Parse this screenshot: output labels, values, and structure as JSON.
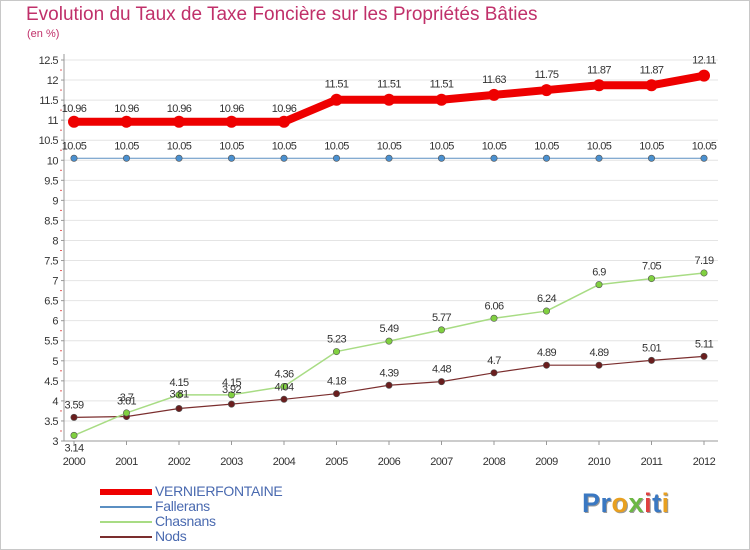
{
  "title": "Evolution du Taux de Taxe Foncière sur les Propriétés Bâties",
  "subtitle": "(en %)",
  "chart_data": {
    "type": "line",
    "title": "Evolution du Taux de Taxe Foncière sur les Propriétés Bâties",
    "ylabel": "(en %)",
    "xlabel": "",
    "x": [
      "2000",
      "2001",
      "2002",
      "2003",
      "2004",
      "2005",
      "2006",
      "2007",
      "2008",
      "2009",
      "2010",
      "2011",
      "2012"
    ],
    "ylim": [
      3,
      12.5
    ],
    "yticks": [
      "3",
      "3.5",
      "4",
      "4.5",
      "5",
      "5.5",
      "6",
      "6.5",
      "7",
      "7.5",
      "8",
      "8.5",
      "9",
      "9.5",
      "10",
      "10.5",
      "11",
      "11.5",
      "12",
      "12.5"
    ],
    "grid": true,
    "legend_position": "bottom-left",
    "series": [
      {
        "name": "VERNIERFONTAINE",
        "color": "#ee0000",
        "values": [
          10.96,
          10.96,
          10.96,
          10.96,
          10.96,
          11.51,
          11.51,
          11.51,
          11.63,
          11.75,
          11.87,
          11.87,
          12.11
        ],
        "labels": [
          "10.96",
          "10.96",
          "10.96",
          "10.96",
          "10.96",
          "11.51",
          "11.51",
          "11.51",
          "11.63",
          "11.75",
          "11.87",
          "11.87",
          "12.11"
        ]
      },
      {
        "name": "Fallerans",
        "color": "#5b8fc2",
        "values": [
          10.05,
          10.05,
          10.05,
          10.05,
          10.05,
          10.05,
          10.05,
          10.05,
          10.05,
          10.05,
          10.05,
          10.05,
          10.05
        ],
        "labels": [
          "10.05",
          "10.05",
          "10.05",
          "10.05",
          "10.05",
          "10.05",
          "10.05",
          "10.05",
          "10.05",
          "10.05",
          "10.05",
          "10.05",
          "10.05"
        ]
      },
      {
        "name": "Chasnans",
        "color": "#a8dc84",
        "values": [
          3.14,
          3.7,
          4.15,
          4.15,
          4.36,
          5.23,
          5.49,
          5.77,
          6.06,
          6.24,
          6.9,
          7.05,
          7.19
        ],
        "labels": [
          "3.14",
          "3.7",
          "4.15",
          "4.15",
          "4.36",
          "5.23",
          "5.49",
          "5.77",
          "6.06",
          "6.24",
          "6.9",
          "7.05",
          "7.19"
        ]
      },
      {
        "name": "Nods",
        "color": "#7b2e2e",
        "values": [
          3.59,
          3.61,
          3.81,
          3.92,
          4.04,
          4.18,
          4.39,
          4.48,
          4.7,
          4.89,
          4.89,
          5.01,
          5.11
        ],
        "labels": [
          "3.59",
          "3.61",
          "3.81",
          "3.92",
          "4.04",
          "4.18",
          "4.39",
          "4.48",
          "4.7",
          "4.89",
          "4.89",
          "5.01",
          "5.11"
        ]
      }
    ]
  },
  "logo": {
    "letters": [
      "P",
      "r",
      "o",
      "x",
      "i",
      "t",
      "i"
    ],
    "colors": [
      "#3a78c2",
      "#3a78c2",
      "#e8a020",
      "#6cb844",
      "#e04040",
      "#3a78c2",
      "#e8a020"
    ]
  }
}
